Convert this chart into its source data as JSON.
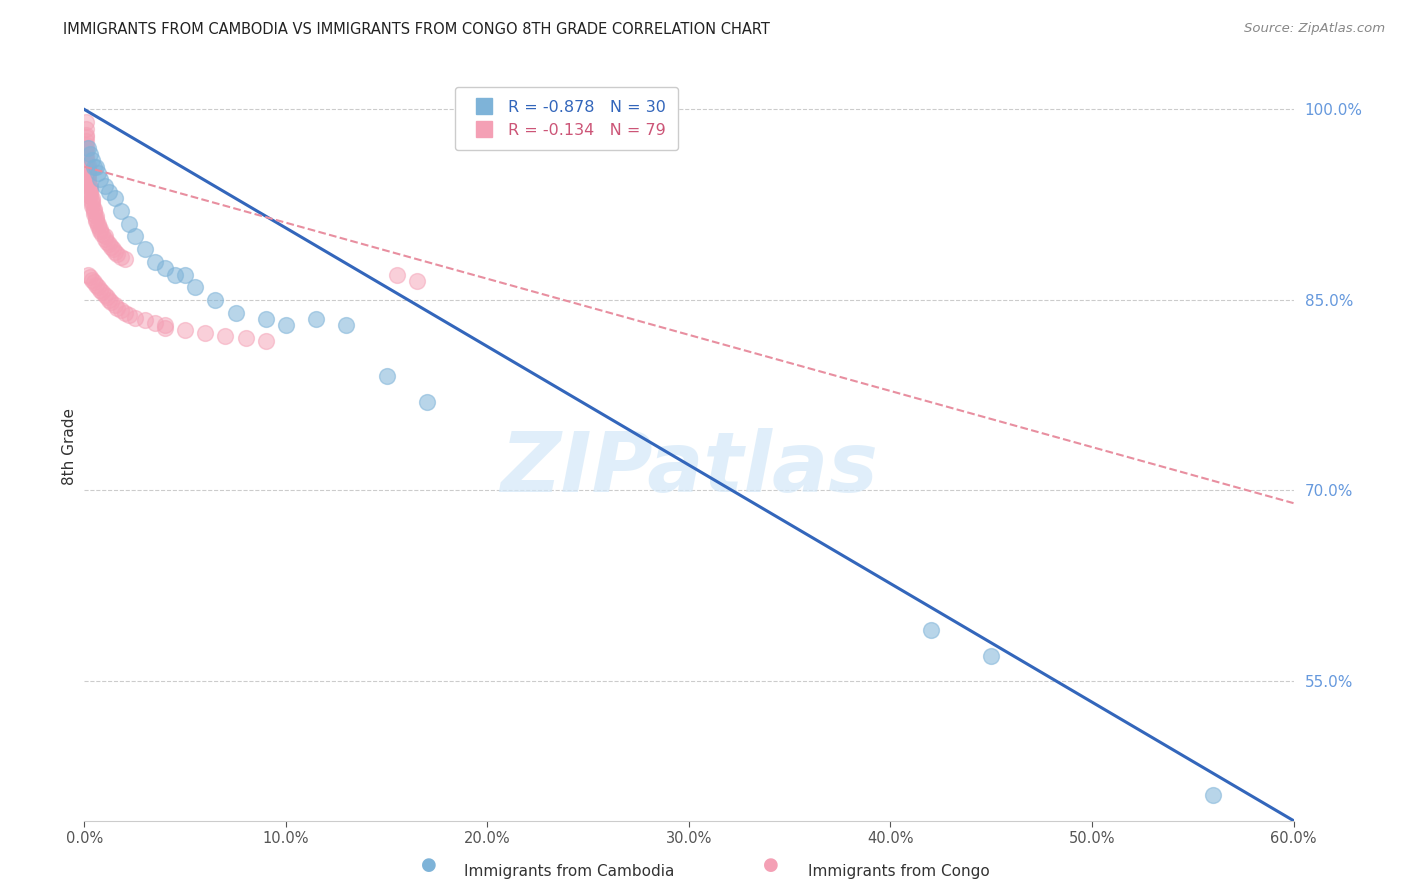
{
  "title": "IMMIGRANTS FROM CAMBODIA VS IMMIGRANTS FROM CONGO 8TH GRADE CORRELATION CHART",
  "source": "Source: ZipAtlas.com",
  "ylabel": "8th Grade",
  "legend_label_blue": "Immigrants from Cambodia",
  "legend_label_pink": "Immigrants from Congo",
  "R_blue": -0.878,
  "N_blue": 30,
  "R_pink": -0.134,
  "N_pink": 79,
  "blue_color": "#7EB3D8",
  "pink_color": "#F4A0B5",
  "blue_line_color": "#3366BB",
  "pink_line_color": "#E88FA0",
  "right_axis_color": "#6699DD",
  "watermark": "ZIPatlas",
  "xlim": [
    0.0,
    0.6
  ],
  "ylim": [
    0.44,
    1.03
  ],
  "xticks": [
    0.0,
    0.1,
    0.2,
    0.3,
    0.4,
    0.5,
    0.6
  ],
  "yticks_right": [
    0.55,
    0.7,
    0.85,
    1.0
  ],
  "blue_line_x0": 0.0,
  "blue_line_y0": 1.0,
  "blue_line_x1": 0.6,
  "blue_line_y1": 0.44,
  "pink_line_x0": 0.0,
  "pink_line_y0": 0.955,
  "pink_line_x1": 0.6,
  "pink_line_y1": 0.69,
  "blue_x": [
    0.002,
    0.003,
    0.004,
    0.005,
    0.006,
    0.007,
    0.008,
    0.01,
    0.012,
    0.015,
    0.018,
    0.022,
    0.025,
    0.03,
    0.035,
    0.04,
    0.045,
    0.05,
    0.055,
    0.065,
    0.075,
    0.09,
    0.1,
    0.115,
    0.13,
    0.15,
    0.17,
    0.42,
    0.45,
    0.56
  ],
  "blue_y": [
    0.97,
    0.965,
    0.96,
    0.955,
    0.955,
    0.95,
    0.945,
    0.94,
    0.935,
    0.93,
    0.92,
    0.91,
    0.9,
    0.89,
    0.88,
    0.875,
    0.87,
    0.87,
    0.86,
    0.85,
    0.84,
    0.835,
    0.83,
    0.835,
    0.83,
    0.79,
    0.77,
    0.59,
    0.57,
    0.46
  ],
  "pink_x": [
    0.001,
    0.001,
    0.001,
    0.001,
    0.001,
    0.001,
    0.001,
    0.001,
    0.001,
    0.001,
    0.001,
    0.001,
    0.002,
    0.002,
    0.002,
    0.002,
    0.002,
    0.002,
    0.002,
    0.002,
    0.003,
    0.003,
    0.003,
    0.003,
    0.003,
    0.004,
    0.004,
    0.004,
    0.004,
    0.005,
    0.005,
    0.005,
    0.006,
    0.006,
    0.006,
    0.007,
    0.007,
    0.008,
    0.008,
    0.009,
    0.01,
    0.01,
    0.011,
    0.012,
    0.013,
    0.014,
    0.015,
    0.016,
    0.018,
    0.02,
    0.002,
    0.003,
    0.004,
    0.005,
    0.006,
    0.007,
    0.008,
    0.009,
    0.01,
    0.011,
    0.012,
    0.013,
    0.015,
    0.016,
    0.018,
    0.02,
    0.022,
    0.025,
    0.03,
    0.035,
    0.04,
    0.04,
    0.05,
    0.06,
    0.07,
    0.08,
    0.09,
    0.155,
    0.165
  ],
  "pink_y": [
    0.99,
    0.985,
    0.98,
    0.978,
    0.975,
    0.972,
    0.97,
    0.968,
    0.965,
    0.962,
    0.96,
    0.958,
    0.956,
    0.954,
    0.952,
    0.95,
    0.948,
    0.946,
    0.944,
    0.942,
    0.94,
    0.938,
    0.936,
    0.934,
    0.932,
    0.93,
    0.928,
    0.926,
    0.924,
    0.922,
    0.92,
    0.918,
    0.916,
    0.914,
    0.912,
    0.91,
    0.908,
    0.906,
    0.904,
    0.902,
    0.9,
    0.898,
    0.896,
    0.894,
    0.892,
    0.89,
    0.888,
    0.886,
    0.884,
    0.882,
    0.87,
    0.868,
    0.866,
    0.864,
    0.862,
    0.86,
    0.858,
    0.856,
    0.854,
    0.852,
    0.85,
    0.848,
    0.846,
    0.844,
    0.842,
    0.84,
    0.838,
    0.836,
    0.834,
    0.832,
    0.83,
    0.828,
    0.826,
    0.824,
    0.822,
    0.82,
    0.818,
    0.87,
    0.865
  ]
}
